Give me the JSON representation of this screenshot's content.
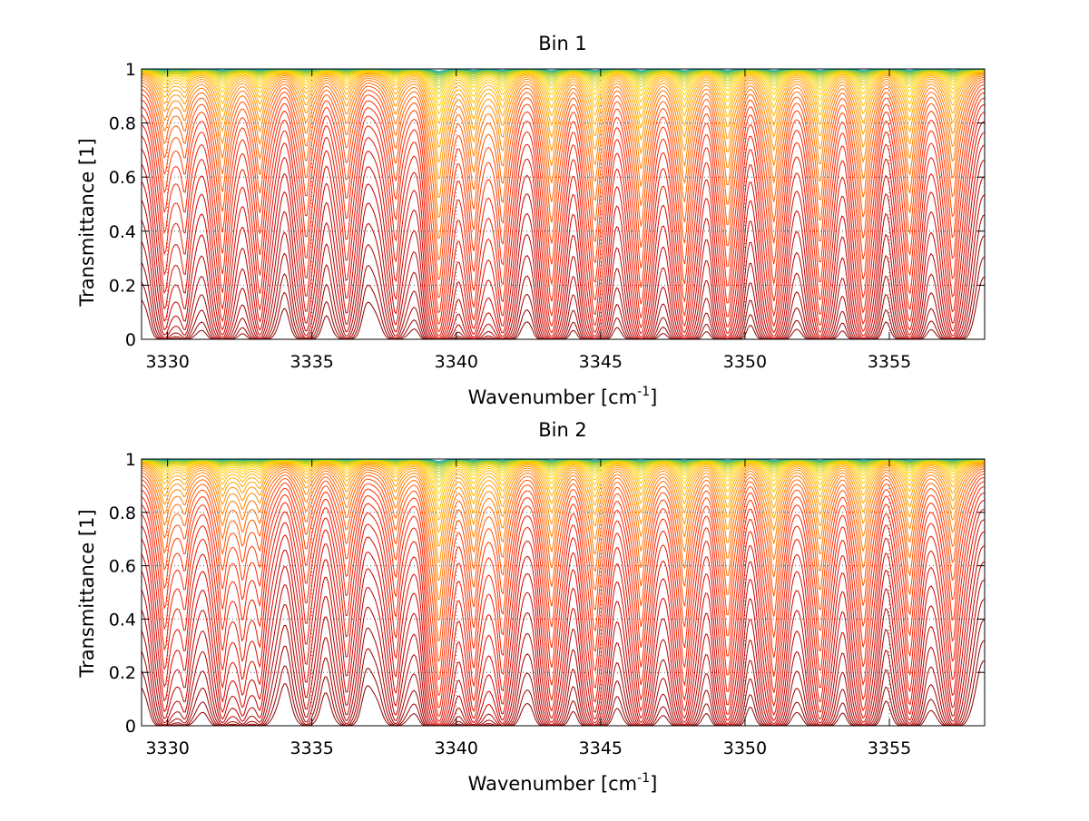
{
  "chart_data": [
    {
      "type": "line",
      "title": "Bin 1",
      "xlabel_main": "Wavenumber [cm",
      "xlabel_sup": "-1",
      "xlabel_end": "]",
      "ylabel": "Transmittance [1]",
      "xlim": [
        3329.1,
        3358.3
      ],
      "ylim": [
        0,
        1
      ],
      "xticks": [
        3330,
        3335,
        3340,
        3345,
        3350,
        3355
      ],
      "yticks": [
        0,
        0.2,
        0.4,
        0.6,
        0.8,
        1
      ],
      "ytick_labels": [
        "0",
        "0.2",
        "0.4",
        "0.6",
        "0.8",
        "1"
      ],
      "grid": "dotted",
      "curve_count": 40,
      "colormap": [
        "#8b0000",
        "#cc0000",
        "#ff2a00",
        "#ff8c00",
        "#ffd400",
        "#9acd32",
        "#20b2aa"
      ],
      "absorption_lines": [
        {
          "x": 3329.9,
          "strength": 0.45
        },
        {
          "x": 3330.6,
          "strength": 0.35
        },
        {
          "x": 3331.9,
          "strength": 0.75
        },
        {
          "x": 3333.2,
          "strength": 0.6
        },
        {
          "x": 3334.8,
          "strength": 0.5
        },
        {
          "x": 3336.2,
          "strength": 0.4
        },
        {
          "x": 3337.9,
          "strength": 0.4
        },
        {
          "x": 3339.4,
          "strength": 1.6
        },
        {
          "x": 3340.6,
          "strength": 0.9
        },
        {
          "x": 3341.6,
          "strength": 0.85
        },
        {
          "x": 3343.3,
          "strength": 1.05
        },
        {
          "x": 3344.8,
          "strength": 1.05
        },
        {
          "x": 3346.4,
          "strength": 1.1
        },
        {
          "x": 3347.9,
          "strength": 1.05
        },
        {
          "x": 3349.4,
          "strength": 1.1
        },
        {
          "x": 3351.0,
          "strength": 1.05
        },
        {
          "x": 3352.6,
          "strength": 1.05
        },
        {
          "x": 3354.1,
          "strength": 1.0
        },
        {
          "x": 3355.7,
          "strength": 0.95
        },
        {
          "x": 3357.2,
          "strength": 0.8
        }
      ]
    },
    {
      "type": "line",
      "title": "Bin 2",
      "xlabel_main": "Wavenumber [cm",
      "xlabel_sup": "-1",
      "xlabel_end": "]",
      "ylabel": "Transmittance [1]",
      "xlim": [
        3329.1,
        3358.3
      ],
      "ylim": [
        0,
        1
      ],
      "xticks": [
        3330,
        3335,
        3340,
        3345,
        3350,
        3355
      ],
      "yticks": [
        0,
        0.2,
        0.4,
        0.6,
        0.8,
        1
      ],
      "ytick_labels": [
        "0",
        "0.2",
        "0.4",
        "0.6",
        "0.8",
        "1"
      ],
      "grid": "dotted",
      "curve_count": 40,
      "colormap": [
        "#8b0000",
        "#cc0000",
        "#ff2a00",
        "#ff8c00",
        "#ffd400",
        "#9acd32",
        "#20b2aa"
      ],
      "absorption_lines": [
        {
          "x": 3329.9,
          "strength": 0.5
        },
        {
          "x": 3330.6,
          "strength": 0.3
        },
        {
          "x": 3331.9,
          "strength": 0.5
        },
        {
          "x": 3332.6,
          "strength": 0.4
        },
        {
          "x": 3333.2,
          "strength": 0.35
        },
        {
          "x": 3334.8,
          "strength": 0.3
        },
        {
          "x": 3336.2,
          "strength": 0.35
        },
        {
          "x": 3337.9,
          "strength": 0.35
        },
        {
          "x": 3339.4,
          "strength": 1.5
        },
        {
          "x": 3340.6,
          "strength": 0.8
        },
        {
          "x": 3341.6,
          "strength": 0.7
        },
        {
          "x": 3343.3,
          "strength": 0.8
        },
        {
          "x": 3344.8,
          "strength": 0.85
        },
        {
          "x": 3346.4,
          "strength": 0.8
        },
        {
          "x": 3347.9,
          "strength": 0.8
        },
        {
          "x": 3349.4,
          "strength": 0.9
        },
        {
          "x": 3351.0,
          "strength": 0.9
        },
        {
          "x": 3352.6,
          "strength": 0.85
        },
        {
          "x": 3354.1,
          "strength": 0.8
        },
        {
          "x": 3355.7,
          "strength": 0.7
        },
        {
          "x": 3357.2,
          "strength": 0.6
        }
      ]
    }
  ]
}
